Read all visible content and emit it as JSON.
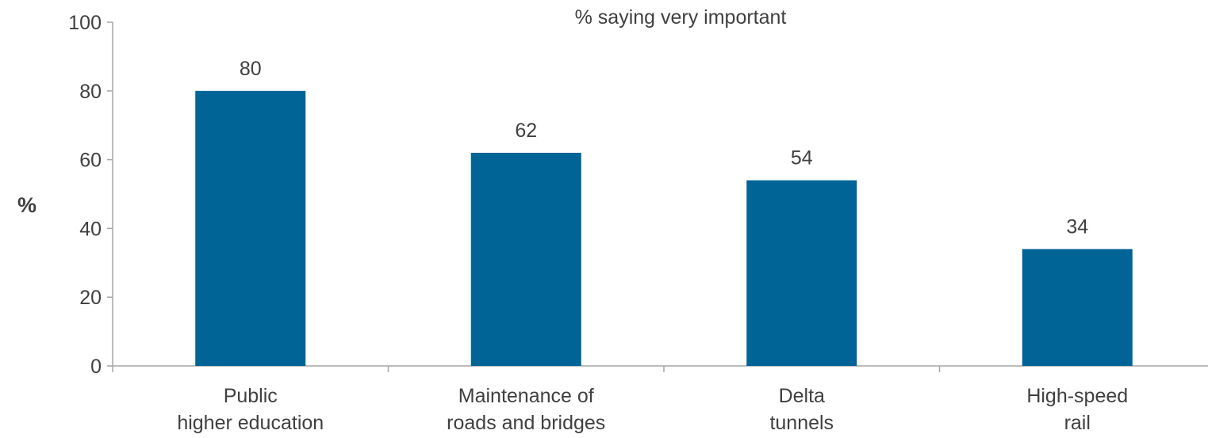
{
  "chart_data": {
    "type": "bar",
    "title": "% saying very important",
    "ylabel": "%",
    "xlabel": "",
    "ylim": [
      0,
      100
    ],
    "yticks": [
      0,
      20,
      40,
      60,
      80,
      100
    ],
    "grid": false,
    "legend": "none",
    "categories": [
      [
        "Public",
        "higher education"
      ],
      [
        "Maintenance of",
        "roads and bridges"
      ],
      [
        "Delta",
        "tunnels"
      ],
      [
        "High-speed",
        "rail"
      ]
    ],
    "values": [
      80,
      62,
      54,
      34
    ],
    "colors": {
      "bar": "#006496",
      "text": "#404040",
      "axis": "#a6a6a6"
    }
  }
}
